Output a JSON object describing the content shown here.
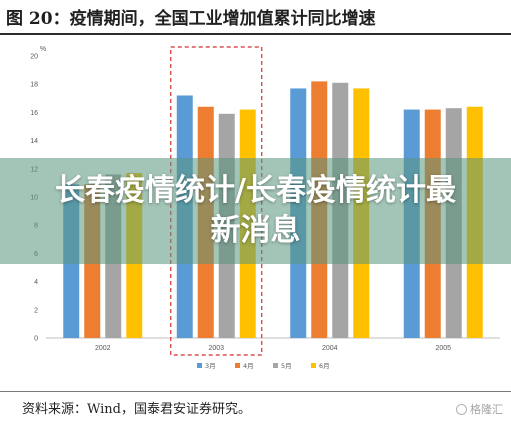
{
  "figure_title": "图 20：疫情期间，全国工业增加值累计同比增速",
  "source_note": "资料来源：Wind，国泰君安证券研究。",
  "watermark": "格隆汇",
  "overlay_title": "长春疫情统计/长春疫情统计最新消息",
  "chart_data": {
    "type": "bar",
    "unit_label": "%",
    "categories": [
      "2002",
      "2003",
      "2004",
      "2005"
    ],
    "series": [
      {
        "name": "3月",
        "color": "#5B9BD5",
        "values": [
          10.9,
          17.2,
          17.7,
          16.2
        ]
      },
      {
        "name": "4月",
        "color": "#ED7D31",
        "values": [
          10.9,
          16.4,
          18.2,
          16.2
        ]
      },
      {
        "name": "5月",
        "color": "#A5A5A5",
        "values": [
          11.6,
          15.9,
          18.1,
          16.3
        ]
      },
      {
        "name": "6月",
        "color": "#FFC000",
        "values": [
          11.7,
          16.2,
          17.7,
          16.4
        ]
      }
    ],
    "ylim": [
      0,
      20
    ],
    "yticks": [
      "0",
      "2",
      "4",
      "6",
      "8",
      "10",
      "12",
      "14",
      "16",
      "18",
      "20"
    ],
    "grid": false,
    "legend": "bottom-center",
    "highlight_category": "2003"
  }
}
